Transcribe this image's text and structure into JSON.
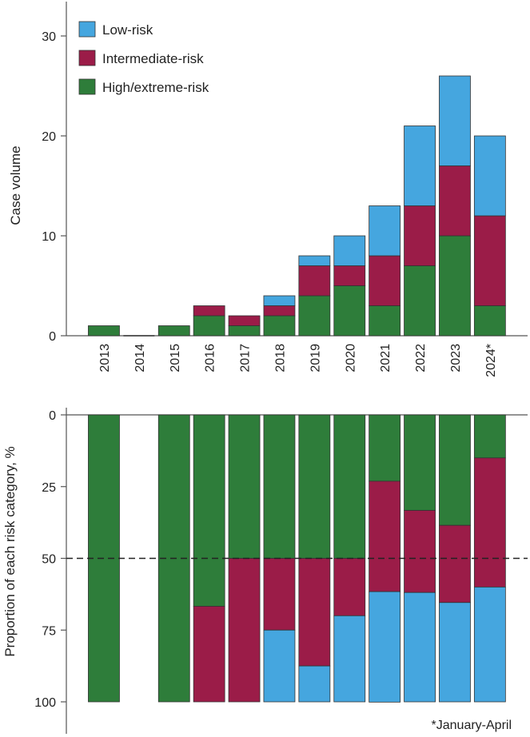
{
  "chart_data": [
    {
      "type": "bar",
      "stacked": true,
      "title": "",
      "xlabel": "",
      "ylabel": "Case volume",
      "ylim": [
        0,
        33
      ],
      "yticks": [
        0,
        10,
        20,
        30
      ],
      "categories": [
        "2013",
        "2014",
        "2015",
        "2016",
        "2017",
        "2018",
        "2019",
        "2020",
        "2021",
        "2022",
        "2023",
        "2024*"
      ],
      "series": [
        {
          "name": "High/extreme-risk",
          "color": "#2e7d3a",
          "values": [
            1,
            0,
            1,
            2,
            1,
            2,
            4,
            5,
            3,
            7,
            10,
            3
          ]
        },
        {
          "name": "Intermediate-risk",
          "color": "#9b1c48",
          "values": [
            0,
            0,
            0,
            1,
            1,
            1,
            3,
            2,
            5,
            6,
            7,
            9
          ]
        },
        {
          "name": "Low-risk",
          "color": "#45a6df",
          "values": [
            0,
            0,
            0,
            0,
            0,
            1,
            1,
            3,
            5,
            8,
            9,
            8
          ]
        }
      ],
      "legend": "top-left"
    },
    {
      "type": "bar",
      "stacked": true,
      "title": "",
      "xlabel": "",
      "ylabel": "Proportion of each risk category, %",
      "ylim": [
        0,
        100
      ],
      "yaxis_inverted": true,
      "yticks": [
        0,
        25,
        50,
        75,
        100
      ],
      "reference_line": {
        "value": 50,
        "style": "dashed"
      },
      "categories": [
        "2013",
        "2014",
        "2015",
        "2016",
        "2017",
        "2018",
        "2019",
        "2020",
        "2021",
        "2022",
        "2023",
        "2024*"
      ],
      "series": [
        {
          "name": "High/extreme-risk",
          "color": "#2e7d3a",
          "values": [
            100,
            0,
            100,
            66.7,
            50,
            50,
            50,
            50,
            23.1,
            33.3,
            38.5,
            15
          ]
        },
        {
          "name": "Intermediate-risk",
          "color": "#9b1c48",
          "values": [
            0,
            0,
            0,
            33.3,
            50,
            25,
            37.5,
            20,
            38.5,
            28.6,
            26.9,
            45
          ]
        },
        {
          "name": "Low-risk",
          "color": "#45a6df",
          "values": [
            0,
            0,
            0,
            0,
            0,
            25,
            12.5,
            30,
            38.5,
            38.1,
            34.6,
            40
          ]
        }
      ]
    }
  ],
  "footnote": "*January-April"
}
